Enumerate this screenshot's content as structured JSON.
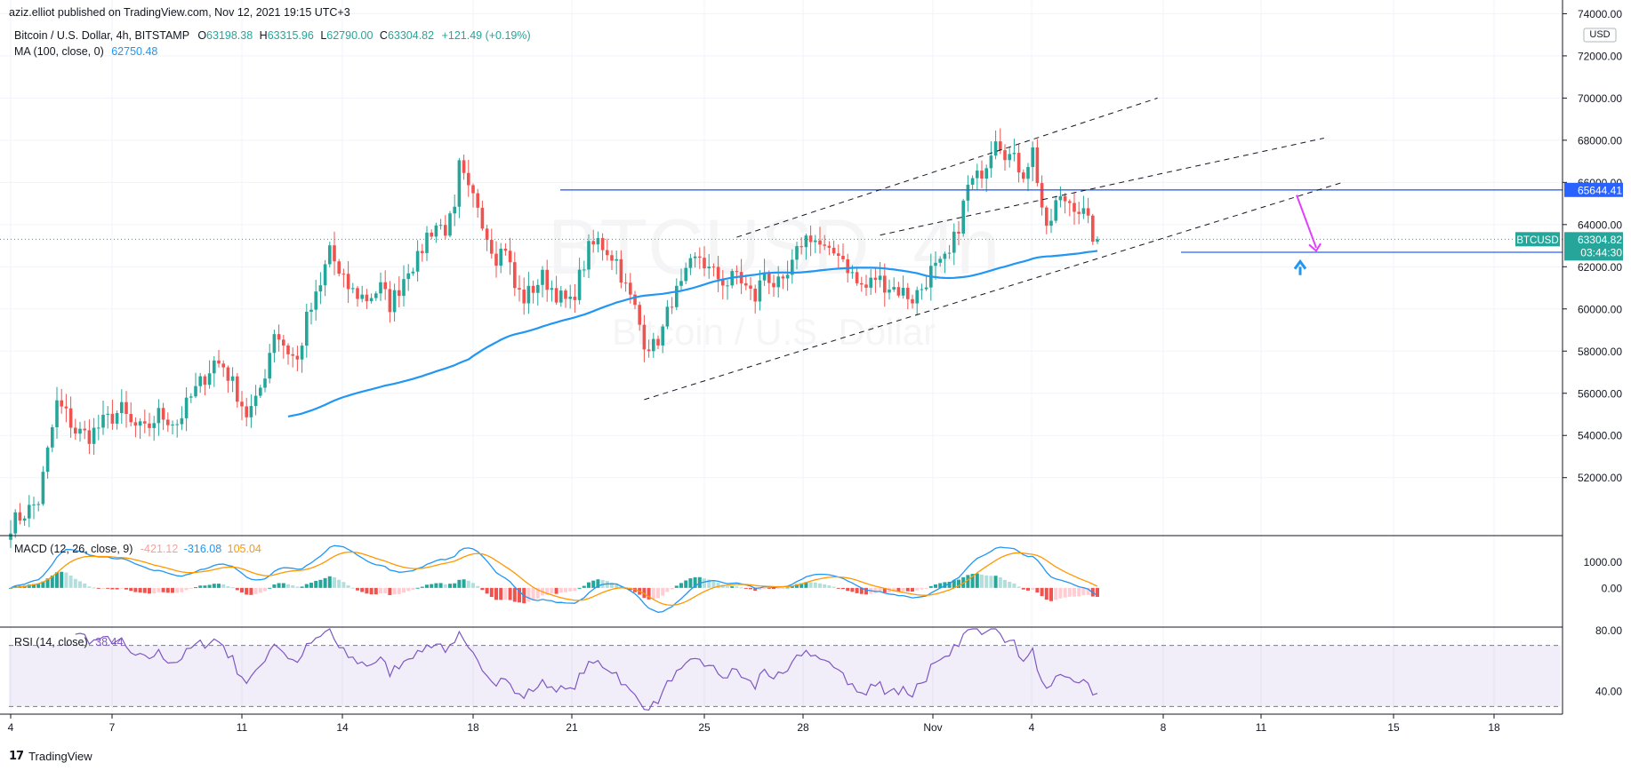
{
  "header": {
    "published": "aziz.elliot published on TradingView.com, Nov 12, 2021 19:15 UTC+3"
  },
  "legend": {
    "title": "Bitcoin / U.S. Dollar, 4h, BITSTAMP",
    "o_label": "O",
    "o": "63198.38",
    "h_label": "H",
    "h": "63315.96",
    "l_label": "L",
    "l": "62790.00",
    "c_label": "C",
    "c": "63304.82",
    "chg": "+121.49 (+0.19%)",
    "ma_label": "MA (100, close, 0)",
    "ma_value": "62750.48",
    "macd_label": "MACD (12, 26, close, 9)",
    "macd_hist": "-421.12",
    "macd_line": "-316.08",
    "macd_signal": "105.04",
    "rsi_label": "RSI (14, close)",
    "rsi_value": "38.44"
  },
  "watermark": {
    "symbol": "BTCUSD, 4h",
    "name": "Bitcoin / U.S. Dollar"
  },
  "footer": {
    "brand": "TradingView"
  },
  "colors": {
    "up": "#26a69a",
    "down": "#ef5350",
    "ma": "#2196f3",
    "macd": "#2196f3",
    "signal": "#ff9800",
    "rsi": "#7e57c2",
    "trend": "#2962ff"
  },
  "chart_data": {
    "type": "candlestick",
    "instrument": "BTCUSD",
    "timeframe": "4h",
    "x_ticks": [
      "4",
      "7",
      "11",
      "14",
      "18",
      "21",
      "25",
      "28",
      "Nov",
      "4",
      "8",
      "11",
      "15",
      "18"
    ],
    "y_ticks": [
      52000,
      54000,
      56000,
      58000,
      60000,
      62000,
      64000,
      66000,
      68000,
      70000,
      72000,
      74000
    ],
    "y_ticks_labels": [
      "52000.00",
      "54000.00",
      "56000.00",
      "58000.00",
      "60000.00",
      "62000.00",
      "64000.00",
      "66000.00",
      "68000.00",
      "70000.00",
      "72000.00",
      "74000.00"
    ],
    "currency": "USD",
    "price_labels": {
      "resistance": "65644.41",
      "symbol": "BTCUSD",
      "last": "63304.82",
      "countdown": "03:44:30",
      "support": "62688.04"
    },
    "levels": {
      "resistance": 65644.41,
      "last": 63304.82,
      "support": 62688.04
    },
    "close_path": [
      [
        0,
        49800
      ],
      [
        4,
        50500
      ],
      [
        6,
        50900
      ],
      [
        10,
        55500
      ],
      [
        12,
        55000
      ],
      [
        14,
        54200
      ],
      [
        17,
        54000
      ],
      [
        20,
        54600
      ],
      [
        24,
        55200
      ],
      [
        26,
        54500
      ],
      [
        29,
        54200
      ],
      [
        32,
        55000
      ],
      [
        36,
        54600
      ],
      [
        39,
        55800
      ],
      [
        42,
        56800
      ],
      [
        44,
        57500
      ],
      [
        46,
        57300
      ],
      [
        49,
        56000
      ],
      [
        51,
        55000
      ],
      [
        53,
        55500
      ],
      [
        55,
        57000
      ],
      [
        57,
        59000
      ],
      [
        60,
        58000
      ],
      [
        62,
        57500
      ],
      [
        64,
        59500
      ],
      [
        67,
        61000
      ],
      [
        69,
        63000
      ],
      [
        71,
        61500
      ],
      [
        74,
        60800
      ],
      [
        77,
        60500
      ],
      [
        80,
        61000
      ],
      [
        82,
        60200
      ],
      [
        84,
        61000
      ],
      [
        86,
        62000
      ],
      [
        88,
        62300
      ],
      [
        90,
        63500
      ],
      [
        92,
        64000
      ],
      [
        94,
        63800
      ],
      [
        96,
        64500
      ],
      [
        97,
        66700
      ],
      [
        99,
        65500
      ],
      [
        101,
        65000
      ],
      [
        103,
        63500
      ],
      [
        105,
        62500
      ],
      [
        107,
        63000
      ],
      [
        109,
        61000
      ],
      [
        111,
        60500
      ],
      [
        113,
        61000
      ],
      [
        115,
        61500
      ],
      [
        117,
        61000
      ],
      [
        119,
        60500
      ],
      [
        121,
        60200
      ],
      [
        123,
        61500
      ],
      [
        125,
        62800
      ],
      [
        127,
        63200
      ],
      [
        129,
        62800
      ],
      [
        131,
        62300
      ],
      [
        133,
        61000
      ],
      [
        135,
        60000
      ],
      [
        137,
        58500
      ],
      [
        139,
        58200
      ],
      [
        141,
        59000
      ],
      [
        143,
        60500
      ],
      [
        145,
        61000
      ],
      [
        147,
        62000
      ],
      [
        149,
        62500
      ],
      [
        151,
        61800
      ],
      [
        153,
        61500
      ],
      [
        155,
        61200
      ],
      [
        157,
        61700
      ],
      [
        159,
        61000
      ],
      [
        161,
        60500
      ],
      [
        163,
        61800
      ],
      [
        165,
        61200
      ],
      [
        167,
        61000
      ],
      [
        169,
        62000
      ],
      [
        171,
        63200
      ],
      [
        173,
        63500
      ],
      [
        175,
        63000
      ],
      [
        177,
        62500
      ],
      [
        179,
        62800
      ],
      [
        181,
        62000
      ],
      [
        183,
        61200
      ],
      [
        185,
        61000
      ],
      [
        187,
        61500
      ],
      [
        189,
        61200
      ],
      [
        191,
        61000
      ],
      [
        193,
        60800
      ],
      [
        195,
        60500
      ],
      [
        197,
        61000
      ],
      [
        199,
        61800
      ],
      [
        201,
        62000
      ],
      [
        203,
        62500
      ],
      [
        205,
        64000
      ],
      [
        207,
        65800
      ],
      [
        209,
        66200
      ],
      [
        211,
        67000
      ],
      [
        213,
        68300
      ],
      [
        215,
        67500
      ],
      [
        217,
        67000
      ],
      [
        219,
        66500
      ],
      [
        221,
        67500
      ],
      [
        222,
        66200
      ],
      [
        224,
        63500
      ],
      [
        226,
        65000
      ],
      [
        228,
        65200
      ],
      [
        230,
        65000
      ],
      [
        232,
        64500
      ],
      [
        234,
        63500
      ],
      [
        235,
        63304
      ]
    ],
    "rsi_ylim": [
      25,
      82
    ],
    "rsi_ticks": [
      40,
      80
    ],
    "rsi_ticks_labels": [
      "40.00",
      "80.00"
    ],
    "macd_ylim": [
      -1500,
      2000
    ],
    "macd_ticks": [
      0,
      1000
    ],
    "macd_ticks_labels": [
      "0.00",
      "1000.00"
    ]
  }
}
